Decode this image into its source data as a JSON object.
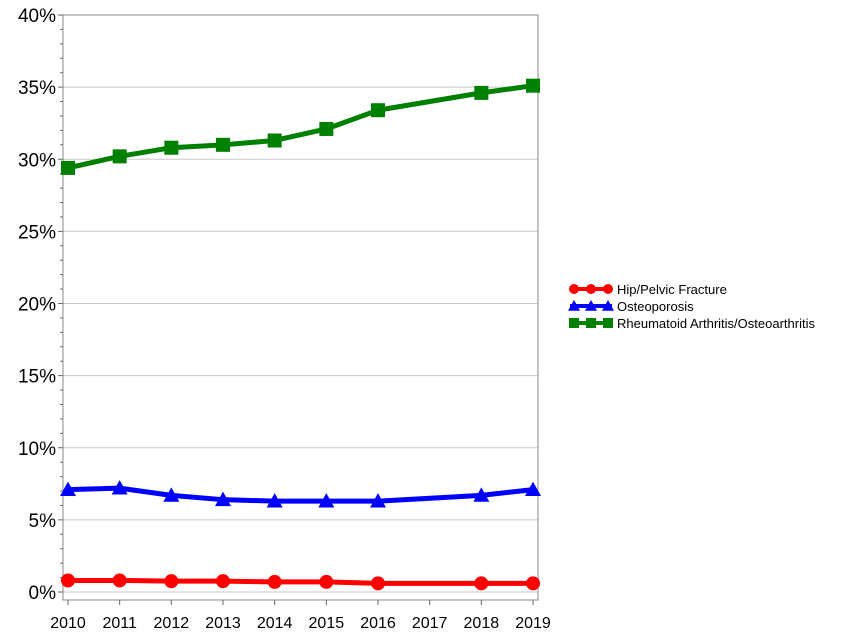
{
  "chart_data": {
    "type": "line",
    "title": "",
    "xlabel": "",
    "ylabel": "",
    "x": [
      2010,
      2011,
      2012,
      2013,
      2014,
      2015,
      2016,
      2017,
      2018,
      2019
    ],
    "x_tick_labels": [
      "2010",
      "2011",
      "2012",
      "2013",
      "2014",
      "2015",
      "2016",
      "2017",
      "2018",
      "2019"
    ],
    "ylim": [
      0,
      40
    ],
    "y_tick_labels": [
      "0%",
      "5%",
      "10%",
      "15%",
      "20%",
      "25%",
      "30%",
      "35%",
      "40%"
    ],
    "y_tick_values": [
      0,
      5,
      10,
      15,
      20,
      25,
      30,
      35,
      40
    ],
    "grid": "horizontal",
    "legend_position": "right",
    "series": [
      {
        "name": "Hip/Pelvic Fracture",
        "color": "#ff0000",
        "marker": "circle",
        "points": [
          [
            2010,
            0.8
          ],
          [
            2011,
            0.8
          ],
          [
            2012,
            0.75
          ],
          [
            2013,
            0.75
          ],
          [
            2014,
            0.7
          ],
          [
            2015,
            0.7
          ],
          [
            2016,
            0.6
          ],
          [
            2018,
            0.6
          ],
          [
            2019,
            0.6
          ]
        ]
      },
      {
        "name": "Osteoporosis",
        "color": "#0000ff",
        "marker": "triangle",
        "points": [
          [
            2010,
            7.1
          ],
          [
            2011,
            7.2
          ],
          [
            2012,
            6.7
          ],
          [
            2013,
            6.4
          ],
          [
            2014,
            6.3
          ],
          [
            2015,
            6.3
          ],
          [
            2016,
            6.3
          ],
          [
            2018,
            6.7
          ],
          [
            2019,
            7.1
          ]
        ]
      },
      {
        "name": "Rheumatoid Arthritis/Osteoarthritis",
        "color": "#008000",
        "marker": "square",
        "points": [
          [
            2010,
            29.4
          ],
          [
            2011,
            30.2
          ],
          [
            2012,
            30.8
          ],
          [
            2013,
            31.0
          ],
          [
            2014,
            31.3
          ],
          [
            2015,
            32.1
          ],
          [
            2016,
            33.4
          ],
          [
            2018,
            34.6
          ],
          [
            2019,
            35.1
          ]
        ]
      }
    ]
  }
}
